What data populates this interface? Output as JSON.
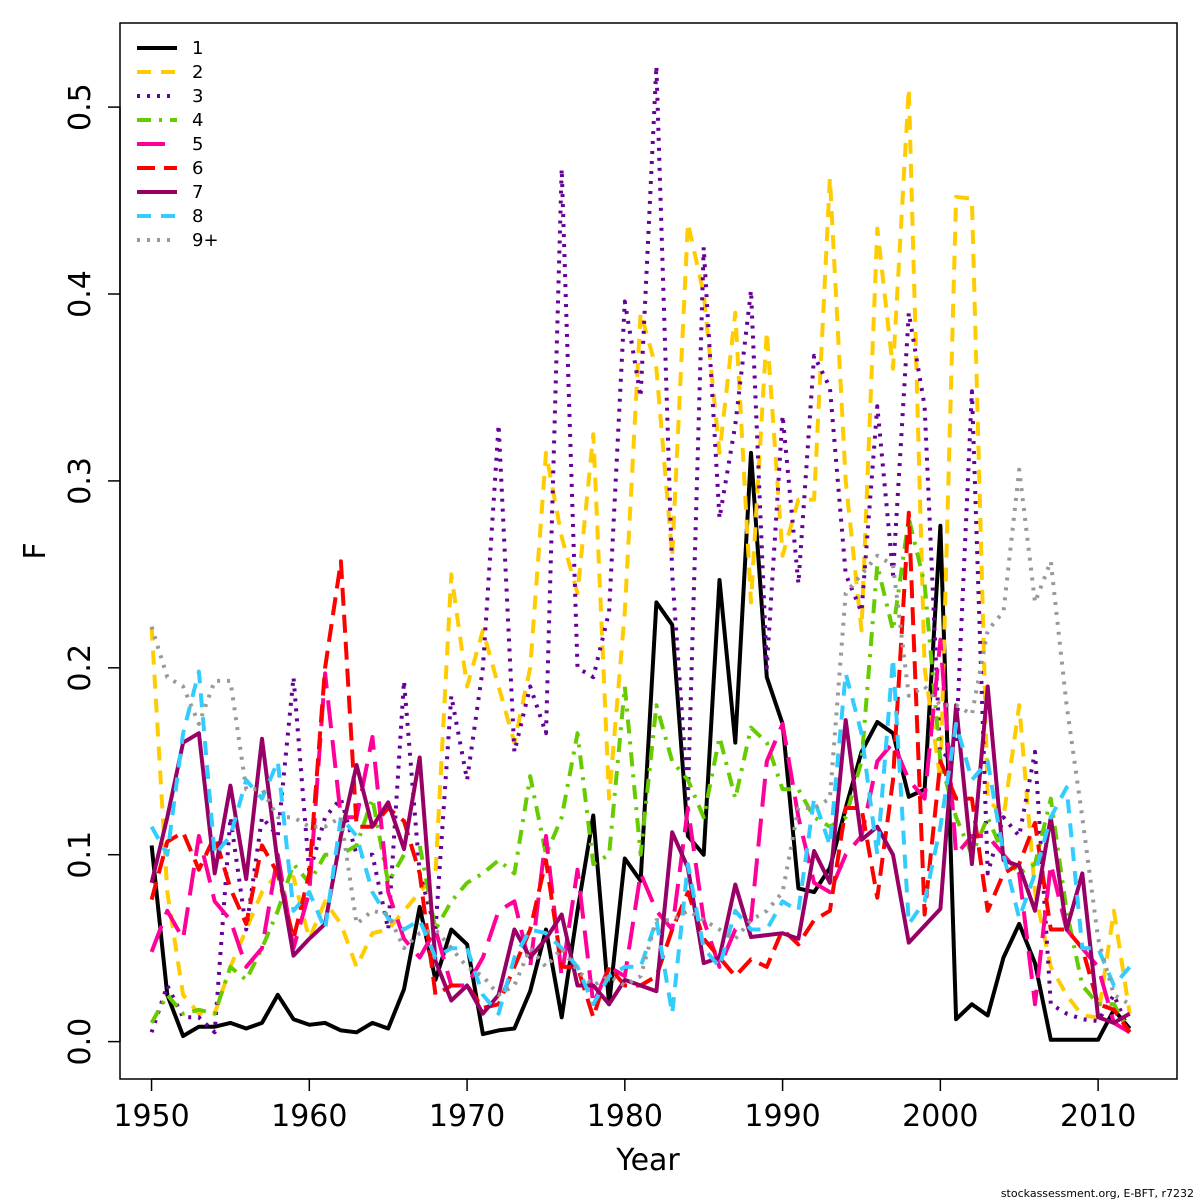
{
  "chart_data": {
    "type": "line",
    "xlabel": "Year",
    "ylabel": "F",
    "xlim": [
      1948,
      2015
    ],
    "ylim": [
      -0.02,
      0.545
    ],
    "xticks": [
      1950,
      1960,
      1970,
      1980,
      1990,
      2000,
      2010
    ],
    "yticks": [
      0.0,
      0.1,
      0.2,
      0.3,
      0.4,
      0.5
    ],
    "ytick_labels": [
      "0.0",
      "0.1",
      "0.2",
      "0.3",
      "0.4",
      "0.5"
    ],
    "legend_position": "top-left",
    "credit": "stockassessment.org, E-BFT, r7232",
    "x": [
      1950,
      1951,
      1952,
      1953,
      1954,
      1955,
      1956,
      1957,
      1958,
      1959,
      1960,
      1961,
      1962,
      1963,
      1964,
      1965,
      1966,
      1967,
      1968,
      1969,
      1970,
      1971,
      1972,
      1973,
      1974,
      1975,
      1976,
      1977,
      1978,
      1979,
      1980,
      1981,
      1982,
      1983,
      1984,
      1985,
      1986,
      1987,
      1988,
      1989,
      1990,
      1991,
      1992,
      1993,
      1994,
      1995,
      1996,
      1997,
      1998,
      1999,
      2000,
      2001,
      2002,
      2003,
      2004,
      2005,
      2006,
      2007,
      2008,
      2009,
      2010,
      2011,
      2012
    ],
    "series": [
      {
        "name": "1",
        "color": "#000000",
        "dash": "",
        "values": [
          0.105,
          0.025,
          0.003,
          0.008,
          0.008,
          0.01,
          0.007,
          0.01,
          0.025,
          0.012,
          0.009,
          0.01,
          0.006,
          0.005,
          0.01,
          0.007,
          0.028,
          0.072,
          0.033,
          0.06,
          0.052,
          0.004,
          0.006,
          0.007,
          0.027,
          0.06,
          0.013,
          0.07,
          0.121,
          0.02,
          0.098,
          0.086,
          0.235,
          0.223,
          0.11,
          0.1,
          0.247,
          0.16,
          0.315,
          0.195,
          0.17,
          0.082,
          0.08,
          0.093,
          0.125,
          0.155,
          0.171,
          0.165,
          0.131,
          0.135,
          0.276,
          0.012,
          0.02,
          0.014,
          0.045,
          0.063,
          0.042,
          0.001,
          0.001,
          0.001,
          0.001,
          0.017,
          0.007
        ]
      },
      {
        "name": "2",
        "color": "#ffcc00",
        "dash": "14 10",
        "values": [
          0.222,
          0.08,
          0.025,
          0.015,
          0.015,
          0.04,
          0.06,
          0.08,
          0.09,
          0.088,
          0.055,
          0.075,
          0.063,
          0.04,
          0.058,
          0.06,
          0.07,
          0.08,
          0.09,
          0.25,
          0.19,
          0.22,
          0.19,
          0.16,
          0.2,
          0.315,
          0.27,
          0.24,
          0.325,
          0.13,
          0.23,
          0.39,
          0.36,
          0.26,
          0.438,
          0.4,
          0.315,
          0.39,
          0.235,
          0.38,
          0.26,
          0.29,
          0.29,
          0.462,
          0.3,
          0.22,
          0.435,
          0.36,
          0.51,
          0.2,
          0.14,
          0.452,
          0.451,
          0.13,
          0.12,
          0.18,
          0.08,
          0.04,
          0.025,
          0.014,
          0.013,
          0.07,
          0.015
        ]
      },
      {
        "name": "3",
        "color": "#660099",
        "dash": "3 7",
        "values": [
          0.005,
          0.03,
          0.013,
          0.013,
          0.005,
          0.12,
          0.06,
          0.12,
          0.11,
          0.195,
          0.09,
          0.12,
          0.13,
          0.1,
          0.1,
          0.06,
          0.193,
          0.09,
          0.06,
          0.185,
          0.14,
          0.2,
          0.33,
          0.155,
          0.19,
          0.165,
          0.467,
          0.2,
          0.195,
          0.23,
          0.396,
          0.345,
          0.522,
          0.25,
          0.13,
          0.425,
          0.28,
          0.33,
          0.402,
          0.2,
          0.335,
          0.245,
          0.367,
          0.35,
          0.25,
          0.23,
          0.34,
          0.25,
          0.39,
          0.34,
          0.15,
          0.16,
          0.348,
          0.09,
          0.12,
          0.11,
          0.155,
          0.02,
          0.015,
          0.012,
          0.011,
          0.025,
          0.005
        ]
      },
      {
        "name": "4",
        "color": "#66cc00",
        "dash": "14 8 3 8",
        "values": [
          0.01,
          0.025,
          0.015,
          0.017,
          0.015,
          0.04,
          0.033,
          0.05,
          0.07,
          0.095,
          0.085,
          0.1,
          0.1,
          0.105,
          0.13,
          0.085,
          0.1,
          0.105,
          0.06,
          0.075,
          0.085,
          0.09,
          0.097,
          0.09,
          0.142,
          0.1,
          0.12,
          0.165,
          0.095,
          0.1,
          0.19,
          0.1,
          0.18,
          0.15,
          0.14,
          0.12,
          0.163,
          0.13,
          0.168,
          0.16,
          0.135,
          0.135,
          0.12,
          0.115,
          0.12,
          0.15,
          0.255,
          0.22,
          0.28,
          0.245,
          0.15,
          0.12,
          0.1,
          0.12,
          0.1,
          0.09,
          0.095,
          0.13,
          0.07,
          0.03,
          0.02,
          0.02,
          0.005
        ]
      },
      {
        "name": "5",
        "color": "#ff0099",
        "dash": "28 12",
        "values": [
          0.048,
          0.07,
          0.055,
          0.11,
          0.075,
          0.065,
          0.04,
          0.05,
          0.1,
          0.05,
          0.08,
          0.197,
          0.12,
          0.12,
          0.163,
          0.08,
          0.055,
          0.045,
          0.06,
          0.03,
          0.03,
          0.045,
          0.07,
          0.075,
          0.04,
          0.11,
          0.035,
          0.092,
          0.02,
          0.04,
          0.035,
          0.09,
          0.07,
          0.06,
          0.125,
          0.065,
          0.04,
          0.06,
          0.065,
          0.15,
          0.17,
          0.12,
          0.085,
          0.08,
          0.1,
          0.11,
          0.15,
          0.16,
          0.14,
          0.13,
          0.215,
          0.1,
          0.11,
          0.11,
          0.1,
          0.09,
          0.02,
          0.095,
          0.06,
          0.05,
          0.04,
          0.01,
          0.005
        ]
      },
      {
        "name": "6",
        "color": "#ff0000",
        "dash": "18 9",
        "values": [
          0.076,
          0.107,
          0.112,
          0.092,
          0.11,
          0.082,
          0.063,
          0.105,
          0.09,
          0.055,
          0.09,
          0.2,
          0.257,
          0.115,
          0.115,
          0.125,
          0.118,
          0.09,
          0.025,
          0.03,
          0.03,
          0.018,
          0.02,
          0.04,
          0.06,
          0.097,
          0.04,
          0.04,
          0.013,
          0.04,
          0.03,
          0.03,
          0.035,
          0.06,
          0.08,
          0.055,
          0.045,
          0.035,
          0.044,
          0.04,
          0.06,
          0.052,
          0.065,
          0.07,
          0.125,
          0.125,
          0.077,
          0.14,
          0.283,
          0.068,
          0.15,
          0.13,
          0.13,
          0.07,
          0.09,
          0.095,
          0.117,
          0.06,
          0.06,
          0.05,
          0.02,
          0.017,
          0.005
        ]
      },
      {
        "name": "7",
        "color": "#990066",
        "dash": "",
        "values": [
          0.085,
          0.12,
          0.16,
          0.165,
          0.09,
          0.137,
          0.087,
          0.162,
          0.095,
          0.046,
          0.055,
          0.063,
          0.11,
          0.148,
          0.115,
          0.128,
          0.103,
          0.152,
          0.043,
          0.022,
          0.03,
          0.015,
          0.025,
          0.06,
          0.045,
          0.055,
          0.068,
          0.03,
          0.03,
          0.02,
          0.033,
          0.03,
          0.027,
          0.112,
          0.093,
          0.042,
          0.045,
          0.084,
          0.056,
          0.057,
          0.058,
          0.055,
          0.102,
          0.085,
          0.172,
          0.108,
          0.115,
          0.1,
          0.053,
          0.062,
          0.071,
          0.18,
          0.095,
          0.19,
          0.097,
          0.094,
          0.07,
          0.12,
          0.06,
          0.09,
          0.013,
          0.01,
          0.015
        ]
      },
      {
        "name": "8",
        "color": "#33ccff",
        "dash": "14 10",
        "values": [
          0.115,
          0.1,
          0.165,
          0.198,
          0.1,
          0.11,
          0.14,
          0.13,
          0.15,
          0.07,
          0.08,
          0.06,
          0.12,
          0.11,
          0.08,
          0.066,
          0.06,
          0.065,
          0.045,
          0.05,
          0.05,
          0.025,
          0.015,
          0.045,
          0.06,
          0.058,
          0.05,
          0.04,
          0.02,
          0.035,
          0.04,
          0.04,
          0.065,
          0.015,
          0.095,
          0.05,
          0.04,
          0.07,
          0.06,
          0.06,
          0.075,
          0.07,
          0.13,
          0.105,
          0.197,
          0.165,
          0.1,
          0.205,
          0.063,
          0.075,
          0.115,
          0.17,
          0.14,
          0.15,
          0.1,
          0.066,
          0.09,
          0.12,
          0.136,
          0.05,
          0.05,
          0.03,
          0.04
        ]
      },
      {
        "name": "9+",
        "color": "#999999",
        "dash": "3 7",
        "values": [
          0.222,
          0.195,
          0.19,
          0.17,
          0.193,
          0.193,
          0.135,
          0.135,
          0.12,
          0.12,
          0.115,
          0.115,
          0.12,
          0.063,
          0.07,
          0.068,
          0.05,
          0.058,
          0.06,
          0.05,
          0.04,
          0.035,
          0.025,
          0.03,
          0.05,
          0.04,
          0.05,
          0.038,
          0.03,
          0.035,
          0.03,
          0.035,
          0.065,
          0.065,
          0.07,
          0.065,
          0.06,
          0.055,
          0.065,
          0.07,
          0.08,
          0.125,
          0.125,
          0.13,
          0.24,
          0.25,
          0.26,
          0.255,
          0.185,
          0.19,
          0.18,
          0.18,
          0.175,
          0.22,
          0.23,
          0.306,
          0.235,
          0.257,
          0.18,
          0.12,
          0.055,
          0.025,
          0.02
        ]
      }
    ]
  }
}
